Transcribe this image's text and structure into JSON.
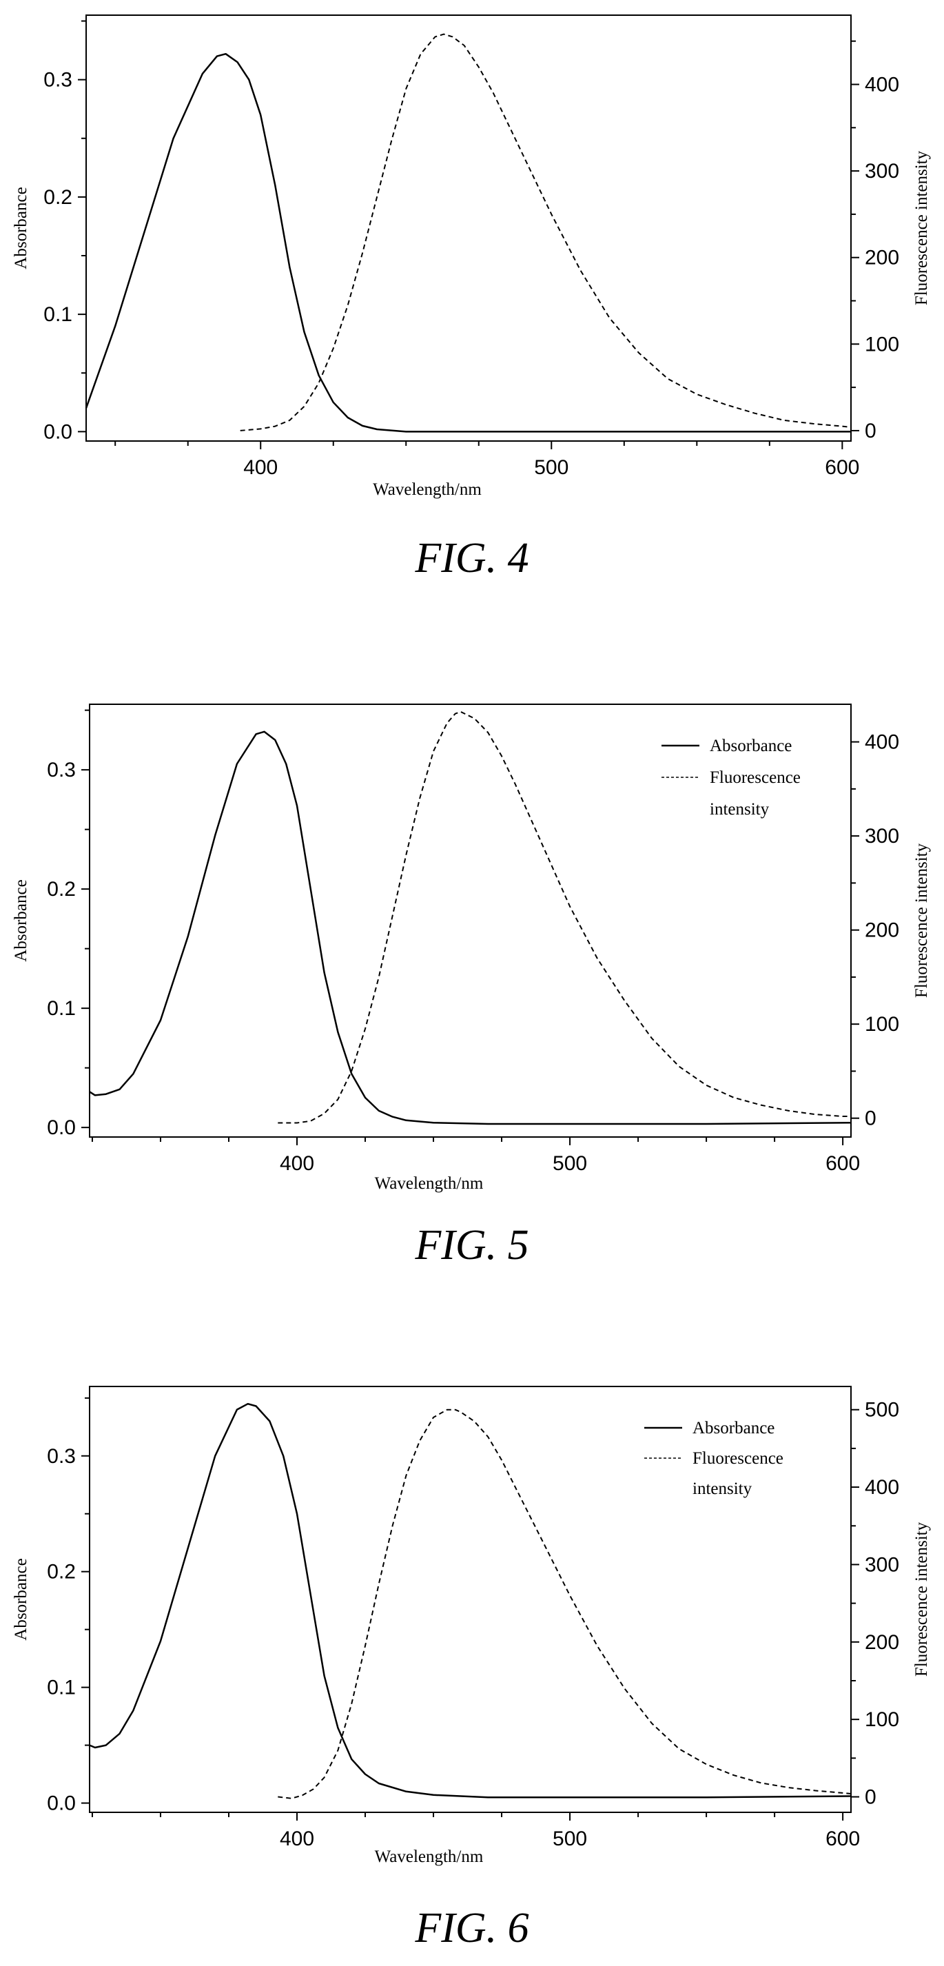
{
  "figures": [
    {
      "caption": "FIG. 4",
      "chart_data": {
        "type": "line",
        "xlabel": "Wavelength/nm",
        "ylabel": "Absorbance",
        "y2label": "Fluorescence intensity",
        "xlim": [
          340,
          603
        ],
        "ylim": [
          -0.008,
          0.355
        ],
        "y2lim": [
          -12,
          480
        ],
        "xticks": [
          400,
          500,
          600
        ],
        "yticks": [
          0.0,
          0.1,
          0.2,
          0.3
        ],
        "ytick_labels": [
          "0.0",
          "0.1",
          "0.2",
          "0.3"
        ],
        "y2ticks": [
          0,
          100,
          200,
          300,
          400
        ],
        "legend": null,
        "series": [
          {
            "axis": "left",
            "style": "solid",
            "x": [
              340,
              350,
              360,
              370,
              380,
              385,
              388,
              392,
              396,
              400,
              405,
              410,
              415,
              420,
              425,
              430,
              435,
              440,
              450,
              470,
              500,
              550,
              603
            ],
            "y": [
              0.02,
              0.09,
              0.17,
              0.25,
              0.305,
              0.32,
              0.322,
              0.315,
              0.3,
              0.27,
              0.21,
              0.14,
              0.085,
              0.048,
              0.025,
              0.012,
              0.005,
              0.002,
              0.0,
              0.0,
              0.0,
              0.0,
              0.0
            ]
          },
          {
            "axis": "right",
            "style": "dashed",
            "x": [
              393,
              400,
              405,
              410,
              415,
              420,
              425,
              430,
              435,
              440,
              445,
              450,
              455,
              460,
              463,
              466,
              470,
              475,
              480,
              490,
              500,
              510,
              520,
              530,
              540,
              550,
              560,
              570,
              580,
              590,
              600,
              603
            ],
            "y": [
              0,
              2,
              5,
              12,
              28,
              55,
              95,
              145,
              205,
              270,
              335,
              395,
              435,
              455,
              458,
              455,
              445,
              420,
              390,
              320,
              250,
              185,
              130,
              90,
              60,
              42,
              30,
              20,
              12,
              8,
              5,
              4
            ]
          }
        ]
      }
    },
    {
      "caption": "FIG. 5",
      "chart_data": {
        "type": "line",
        "xlabel": "Wavelength/nm",
        "ylabel": "Absorbance",
        "y2label": "Fluorescence intensity",
        "xlim": [
          324,
          603
        ],
        "ylim": [
          -0.008,
          0.355
        ],
        "y2lim": [
          -20,
          440
        ],
        "xticks": [
          400,
          500,
          600
        ],
        "yticks": [
          0.0,
          0.1,
          0.2,
          0.3
        ],
        "ytick_labels": [
          "0.0",
          "0.1",
          "0.2",
          "0.3"
        ],
        "y2ticks": [
          0,
          100,
          200,
          300,
          400
        ],
        "legend": {
          "position": "top-right",
          "entries": [
            {
              "label": "Absorbance",
              "style": "solid"
            },
            {
              "label": "Fluorescence",
              "style": "dashed"
            },
            {
              "label": "intensity",
              "style": "none"
            }
          ]
        },
        "series": [
          {
            "axis": "left",
            "style": "solid",
            "x": [
              324,
              326,
              330,
              335,
              340,
              350,
              360,
              370,
              378,
              385,
              388,
              392,
              396,
              400,
              405,
              410,
              415,
              420,
              425,
              430,
              435,
              440,
              450,
              470,
              500,
              550,
              603
            ],
            "y": [
              0.03,
              0.027,
              0.028,
              0.032,
              0.045,
              0.09,
              0.16,
              0.245,
              0.305,
              0.33,
              0.332,
              0.325,
              0.305,
              0.27,
              0.2,
              0.13,
              0.08,
              0.045,
              0.025,
              0.014,
              0.009,
              0.006,
              0.004,
              0.003,
              0.003,
              0.003,
              0.004
            ]
          },
          {
            "axis": "right",
            "style": "dashed",
            "x": [
              393,
              400,
              405,
              410,
              415,
              420,
              425,
              430,
              435,
              440,
              445,
              450,
              455,
              458,
              460,
              465,
              470,
              475,
              480,
              490,
              500,
              510,
              520,
              530,
              540,
              550,
              560,
              570,
              580,
              590,
              600,
              603
            ],
            "y": [
              -5,
              -5,
              -3,
              5,
              20,
              50,
              95,
              150,
              215,
              280,
              340,
              390,
              420,
              430,
              432,
              425,
              410,
              385,
              355,
              290,
              225,
              170,
              125,
              85,
              55,
              35,
              22,
              14,
              8,
              4,
              2,
              2
            ]
          }
        ]
      }
    },
    {
      "caption": "FIG. 6",
      "chart_data": {
        "type": "line",
        "xlabel": "Wavelength/nm",
        "ylabel": "Absorbance",
        "y2label": "Fluorescence intensity",
        "xlim": [
          324,
          603
        ],
        "ylim": [
          -0.008,
          0.36
        ],
        "y2lim": [
          -20,
          530
        ],
        "xticks": [
          400,
          500,
          600
        ],
        "yticks": [
          0.0,
          0.1,
          0.2,
          0.3
        ],
        "ytick_labels": [
          "0.0",
          "0.1",
          "0.2",
          "0.3"
        ],
        "y2ticks": [
          0,
          100,
          200,
          300,
          400,
          500
        ],
        "legend": {
          "position": "top-right",
          "entries": [
            {
              "label": "Absorbance",
              "style": "solid"
            },
            {
              "label": "Fluorescence",
              "style": "dashed"
            },
            {
              "label": "intensity",
              "style": "none"
            }
          ]
        },
        "series": [
          {
            "axis": "left",
            "style": "solid",
            "x": [
              324,
              326,
              330,
              335,
              340,
              350,
              360,
              370,
              378,
              382,
              385,
              390,
              395,
              400,
              405,
              410,
              415,
              420,
              425,
              430,
              440,
              450,
              470,
              500,
              550,
              603
            ],
            "y": [
              0.05,
              0.048,
              0.05,
              0.06,
              0.08,
              0.14,
              0.22,
              0.3,
              0.34,
              0.345,
              0.343,
              0.33,
              0.3,
              0.25,
              0.18,
              0.11,
              0.065,
              0.038,
              0.025,
              0.017,
              0.01,
              0.007,
              0.005,
              0.005,
              0.005,
              0.006
            ]
          },
          {
            "axis": "right",
            "style": "dashed",
            "x": [
              393,
              398,
              402,
              406,
              410,
              415,
              420,
              425,
              430,
              435,
              440,
              445,
              450,
              455,
              458,
              460,
              465,
              470,
              475,
              480,
              490,
              500,
              510,
              520,
              530,
              540,
              550,
              560,
              570,
              580,
              590,
              600,
              603
            ],
            "y": [
              0,
              -2,
              2,
              10,
              25,
              60,
              120,
              195,
              275,
              350,
              415,
              460,
              490,
              500,
              500,
              497,
              485,
              465,
              435,
              400,
              330,
              260,
              195,
              140,
              95,
              62,
              42,
              28,
              18,
              12,
              8,
              5,
              4
            ]
          }
        ]
      }
    }
  ]
}
